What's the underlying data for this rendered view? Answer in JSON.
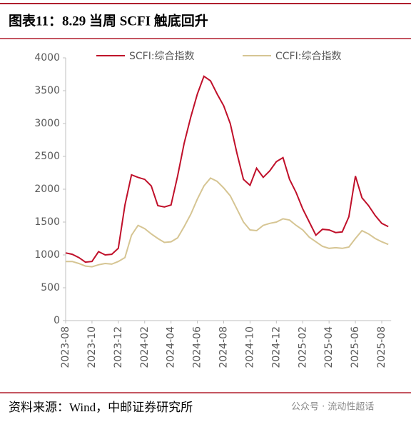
{
  "header": {
    "title": "图表11：8.29 当周 SCFI 触底回升"
  },
  "chart_data": {
    "type": "line",
    "categories": [
      "2023-08",
      null,
      null,
      null,
      "2023-10",
      null,
      null,
      null,
      "2023-12",
      null,
      null,
      null,
      "2024-02",
      null,
      null,
      null,
      "2024-04",
      null,
      null,
      null,
      "2024-06",
      null,
      null,
      null,
      "2024-08",
      null,
      null,
      null,
      "2024-10",
      null,
      null,
      null,
      "2024-12",
      null,
      null,
      null,
      "2025-02",
      null,
      null,
      null,
      "2025-04",
      null,
      null,
      null,
      "2025-06",
      null,
      null,
      null,
      "2025-08",
      null
    ],
    "series": [
      {
        "name": "SCFI:综合指数",
        "color": "#c0102a",
        "values": [
          1030,
          1010,
          960,
          890,
          900,
          1050,
          1000,
          1010,
          1100,
          1760,
          2220,
          2180,
          2150,
          2050,
          1750,
          1730,
          1760,
          2200,
          2700,
          3100,
          3450,
          3720,
          3650,
          3450,
          3270,
          3000,
          2550,
          2150,
          2060,
          2320,
          2180,
          2280,
          2420,
          2480,
          2150,
          1950,
          1700,
          1500,
          1300,
          1390,
          1380,
          1340,
          1350,
          1580,
          2200,
          1870,
          1750,
          1600,
          1480,
          1430
        ]
      },
      {
        "name": "CCFI:综合指数",
        "color": "#d6c593",
        "values": [
          900,
          900,
          870,
          830,
          820,
          850,
          870,
          860,
          900,
          960,
          1300,
          1450,
          1400,
          1320,
          1250,
          1190,
          1200,
          1260,
          1430,
          1620,
          1850,
          2050,
          2170,
          2120,
          2020,
          1900,
          1700,
          1500,
          1380,
          1370,
          1450,
          1480,
          1500,
          1550,
          1530,
          1450,
          1380,
          1270,
          1200,
          1130,
          1100,
          1110,
          1100,
          1120,
          1250,
          1370,
          1320,
          1250,
          1200,
          1160
        ]
      }
    ],
    "ylim": [
      0,
      4000
    ],
    "yticks": [
      0,
      500,
      1000,
      1500,
      2000,
      2500,
      3000,
      3500,
      4000
    ],
    "legend": "top"
  },
  "source": "资料来源：Wind，中邮证券研究所",
  "watermark": "公众号 · 流动性超话"
}
